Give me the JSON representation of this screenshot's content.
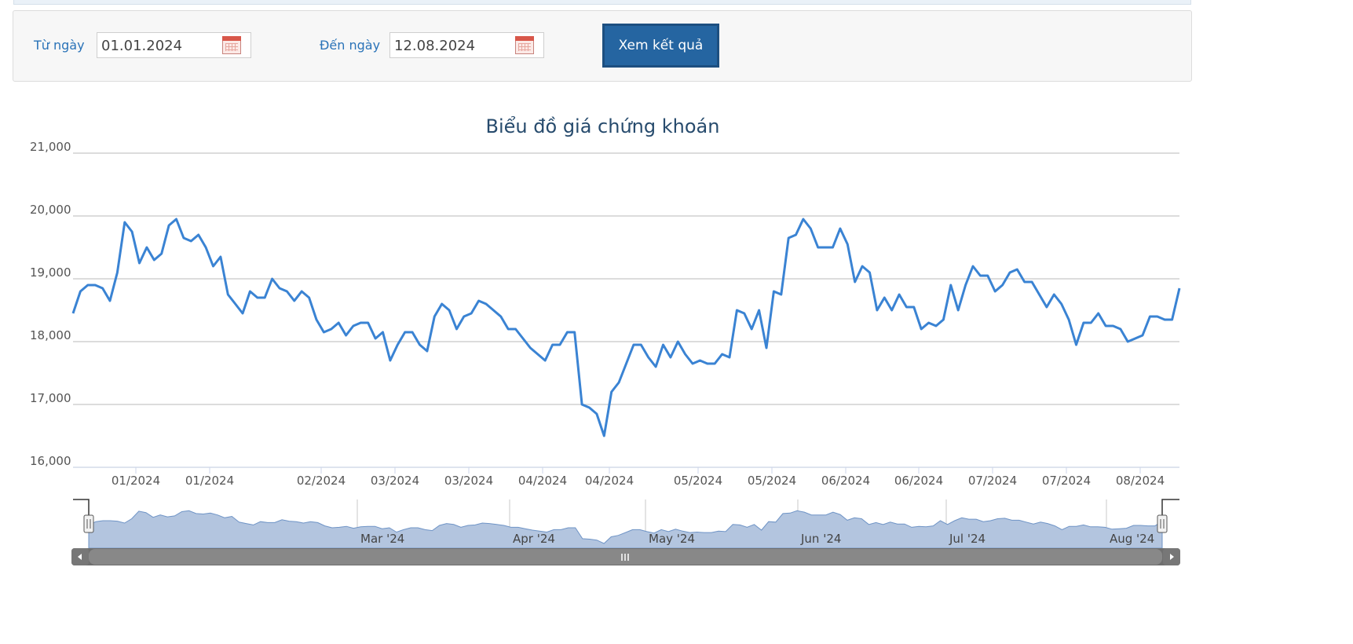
{
  "filter": {
    "from_label": "Từ ngày",
    "from_value": "01.01.2024",
    "to_label": "Đến ngày",
    "to_value": "12.08.2024",
    "submit_label": "Xem kết quả"
  },
  "colors": {
    "line": "#3a83d3",
    "navigator_fill": "#b3c5df",
    "button": "#2565a1"
  },
  "chart_data": {
    "type": "line",
    "title": "Biểu đồ giá chứng khoán",
    "ylim": [
      16000,
      21000
    ],
    "yticks": [
      "16,000",
      "17,000",
      "18,000",
      "19,000",
      "20,000",
      "21,000"
    ],
    "yticks_values": [
      16000,
      17000,
      18000,
      19000,
      20000,
      21000
    ],
    "xtick_labels": [
      "01/2024",
      "01/2024",
      "02/2024",
      "03/2024",
      "03/2024",
      "04/2024",
      "04/2024",
      "05/2024",
      "05/2024",
      "06/2024",
      "06/2024",
      "07/2024",
      "07/2024",
      "08/2024"
    ],
    "grid": true,
    "legend": "none",
    "series": [
      {
        "values": [
          18450,
          18800,
          18900,
          18900,
          18850,
          18650,
          19100,
          19900,
          19750,
          19250,
          19500,
          19300,
          19400,
          19850,
          19950,
          19650,
          19600,
          19700,
          19500,
          19200,
          19350,
          18750,
          18600,
          18450,
          18800,
          18700,
          18700,
          19000,
          18850,
          18800,
          18650,
          18800,
          18700,
          18350,
          18150,
          18200,
          18300,
          18100,
          18250,
          18300,
          18300,
          18050,
          18150,
          17700,
          17950,
          18150,
          18150,
          17950,
          17850,
          18400,
          18600,
          18500,
          18200,
          18400,
          18450,
          18650,
          18600,
          18500,
          18400,
          18200,
          18200,
          18050,
          17900,
          17800,
          17700,
          17950,
          17950,
          18150,
          18150,
          17000,
          16950,
          16850,
          16500,
          17200,
          17350,
          17650,
          17950,
          17950,
          17750,
          17600,
          17950,
          17750,
          18000,
          17800,
          17650,
          17700,
          17650,
          17650,
          17800,
          17750,
          18500,
          18450,
          18200,
          18500,
          17900,
          18800,
          18750,
          19650,
          19700,
          19950,
          19800,
          19500,
          19500,
          19500,
          19800,
          19550,
          18950,
          19200,
          19100,
          18500,
          18700,
          18500,
          18750,
          18550,
          18550,
          18200,
          18300,
          18250,
          18350,
          18900,
          18500,
          18900,
          19200,
          19050,
          19050,
          18800,
          18900,
          19100,
          19150,
          18950,
          18950,
          18750,
          18550,
          18750,
          18600,
          18350,
          17950,
          18300,
          18300,
          18450,
          18250,
          18250,
          18200,
          18000,
          18050,
          18100,
          18400,
          18400,
          18350,
          18350,
          18850
        ]
      }
    ]
  },
  "navigator": {
    "labels": [
      "Mar '24",
      "Apr '24",
      "May '24",
      "Jun '24",
      "Jul '24",
      "Aug '24"
    ],
    "scroll_icon": "grip-icon"
  }
}
